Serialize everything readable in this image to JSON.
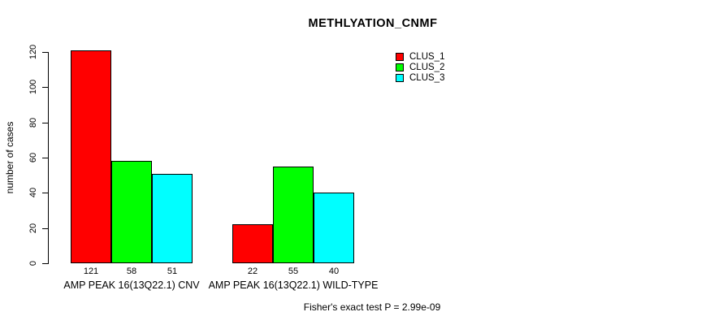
{
  "chart_data": {
    "type": "bar",
    "title": "METHLYATION_CNMF",
    "xlabel": "",
    "ylabel": "number of cases",
    "ylim": [
      0,
      120
    ],
    "yticks": [
      0,
      20,
      40,
      60,
      80,
      100,
      120
    ],
    "grid": false,
    "legend_position": "top-right",
    "categories": [
      "AMP PEAK 16(13Q22.1) CNV",
      "AMP PEAK 16(13Q22.1) WILD-TYPE"
    ],
    "series": [
      {
        "name": "CLUS_1",
        "color": "#ff0000",
        "values": [
          121,
          22
        ]
      },
      {
        "name": "CLUS_2",
        "color": "#00ff00",
        "values": [
          58,
          55
        ]
      },
      {
        "name": "CLUS_3",
        "color": "#00ffff",
        "values": [
          51,
          40
        ]
      }
    ],
    "bar_value_labels": [
      [
        121,
        58,
        51
      ],
      [
        22,
        55,
        40
      ]
    ],
    "annotation": "Fisher's exact test P = 2.99e-09"
  }
}
